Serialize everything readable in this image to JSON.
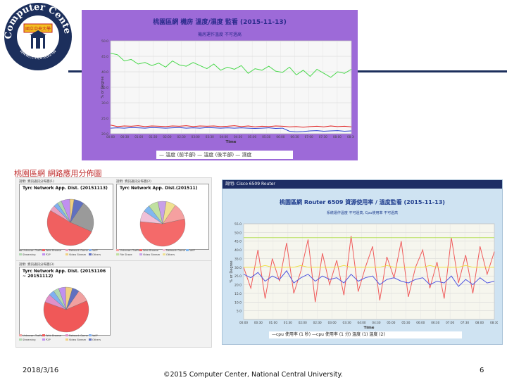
{
  "logo": {
    "arc_text": "Computer Center",
    "url_text": "www.cc.ncu.edu.tw",
    "badge_text": "國立中央大學"
  },
  "top_chart": {
    "title": "桃園區網 機房 溫度/濕度 監看 (2015-11-13)",
    "subtitle": "機房運作溫度 不可過高",
    "ylabel": "% or Degree",
    "xlabel": "Time",
    "legend": "— 溫度 (前半部)  — 溫度 (後半部)   — 濕度"
  },
  "left_panel": {
    "heading": "桃園區網 網路應用分佈圖",
    "card1": {
      "head": "說明: 資訊通訊分佈圖(1)",
      "title": "Tyrc Network App. Dist. (20151113)"
    },
    "card2": {
      "head": "說明: 資訊通訊分佈圖(2)",
      "title": "Tyrc Network App. Dist.(201511)"
    },
    "card3": {
      "head": "說明: 資訊通訊分佈圖(3)",
      "title": "Tyrc Network App. Dist. (20151106 ~ 20151112)"
    }
  },
  "router_panel": {
    "header": "說明: Cisco 6509 Router",
    "title": "桃園區網 Router 6509 資源使用率 / 溫度監看 (2015-11-13)",
    "subtitle": "系統運作溫度 不可過高, Cpu使用率 不可過高",
    "ylabel": "% or Degree",
    "xlabel": "Time",
    "legend": "—cpu 使用率 (1 秒) —cpu 使用率 (1 分)  溫度 (1)  溫度 (2)"
  },
  "footer": {
    "date": "2018/3/16",
    "copyright": "©2015 Computer Center, National Central University.",
    "page": "6"
  },
  "colors": {
    "nav_line": "#1c2f5c",
    "top_panel_bg": "#9d6ad8",
    "router_panel_bg": "#cfe3f2"
  },
  "chart_data": [
    {
      "type": "line",
      "title": "桃園區網 機房 溫度/濕度 監看 (2015-11-13)",
      "xlabel": "Time",
      "ylabel": "% or Degree",
      "ylim": [
        20,
        50
      ],
      "yticks": [
        20,
        25,
        30,
        35,
        40,
        45,
        50
      ],
      "xticks": [
        "00:00",
        "00:30",
        "01:00",
        "01:30",
        "02:00",
        "02:30",
        "03:00",
        "03:30",
        "04:00",
        "04:30",
        "05:00",
        "05:30",
        "06:00",
        "06:30",
        "07:00",
        "07:30",
        "08:00",
        "08:30"
      ],
      "grid": true,
      "legend": "bottom",
      "series": [
        {
          "name": "溫度 (前半部)",
          "color": "#e02020",
          "values": [
            22.8,
            22.3,
            22.5,
            22.4,
            22.6,
            22.3,
            22.5,
            22.4,
            22.3,
            22.5,
            22.4,
            22.6,
            22.3,
            22.5,
            22.4,
            22.5,
            22.3,
            22.4,
            22.6,
            22.3,
            22.5,
            22.2,
            22.4,
            22.3,
            22.5,
            22.4,
            22.2,
            22.3,
            22.1,
            22.3,
            22.4,
            22.2,
            22.5,
            22.3,
            22.4,
            22.2
          ]
        },
        {
          "name": "溫度 (後半部)",
          "color": "#2a3fd0",
          "values": [
            21.8,
            21.9,
            21.8,
            22.0,
            21.9,
            21.8,
            22.0,
            21.9,
            21.8,
            21.9,
            22.0,
            21.8,
            21.9,
            21.8,
            22.0,
            21.9,
            21.8,
            21.9,
            21.8,
            21.9,
            21.8,
            21.7,
            21.8,
            21.9,
            21.7,
            21.8,
            20.8,
            20.6,
            20.7,
            20.9,
            21.0,
            20.8,
            20.9,
            21.0,
            20.8,
            20.9
          ]
        },
        {
          "name": "濕度",
          "color": "#48d84a",
          "values": [
            46.0,
            45.5,
            43.5,
            44.0,
            42.5,
            43.0,
            42.0,
            42.8,
            41.5,
            43.5,
            42.2,
            41.8,
            43.0,
            42.0,
            41.0,
            42.5,
            40.5,
            41.5,
            40.8,
            42.0,
            39.5,
            41.0,
            40.5,
            41.8,
            40.2,
            39.8,
            41.5,
            39.0,
            40.5,
            38.5,
            40.8,
            39.5,
            38.2,
            40.0,
            39.5,
            40.8
          ]
        }
      ]
    },
    {
      "type": "line",
      "title": "桃園區網 Router 6509 資源使用率 / 溫度監看 (2015-11-13)",
      "xlabel": "Time",
      "ylabel": "% or Degree",
      "ylim": [
        0,
        55
      ],
      "yticks": [
        5,
        10,
        15,
        20,
        25,
        30,
        35,
        40,
        45,
        50,
        55
      ],
      "xticks": [
        "00:00",
        "00:30",
        "01:00",
        "01:30",
        "02:00",
        "02:30",
        "03:00",
        "03:30",
        "04:00",
        "04:30",
        "05:00",
        "05:30",
        "06:00",
        "06:30",
        "07:00",
        "07:30",
        "08:00",
        "08:30"
      ],
      "grid": true,
      "legend": "bottom",
      "series": [
        {
          "name": "cpu 使用率 (1 秒)",
          "color": "#f05a5a",
          "values": [
            30,
            18,
            40,
            12,
            35,
            22,
            44,
            15,
            28,
            46,
            10,
            38,
            20,
            34,
            14,
            48,
            16,
            30,
            42,
            11,
            36,
            24,
            45,
            13,
            30,
            40,
            18,
            33,
            12,
            47,
            21,
            37,
            15,
            42,
            26,
            39
          ]
        },
        {
          "name": "cpu 使用率 (1 分)",
          "color": "#4f55e0",
          "values": [
            26,
            24,
            27,
            22,
            25,
            23,
            28,
            21,
            24,
            26,
            22,
            25,
            23,
            24,
            21,
            26,
            22,
            24,
            25,
            20,
            23,
            24,
            22,
            21,
            23,
            24,
            20,
            22,
            21,
            25,
            19,
            23,
            20,
            24,
            21,
            22
          ]
        },
        {
          "name": "溫度 (1)",
          "color": "#b8e060",
          "values": [
            47,
            47,
            47,
            47,
            47,
            47,
            47,
            47,
            47,
            47,
            47,
            47,
            47,
            47,
            47,
            47,
            47,
            47,
            47,
            47,
            47,
            47,
            47,
            47,
            47,
            47,
            47,
            47,
            47,
            47,
            47,
            47,
            47,
            47,
            47,
            47
          ]
        },
        {
          "name": "溫度 (2)",
          "color": "#f0e040",
          "values": [
            30,
            30,
            30,
            31,
            30,
            30,
            30,
            30,
            31,
            30,
            30,
            30,
            30,
            30,
            31,
            30,
            30,
            30,
            30,
            30,
            31,
            30,
            30,
            30,
            30,
            30,
            31,
            30,
            30,
            30,
            30,
            31,
            30,
            30,
            30,
            30
          ]
        }
      ]
    },
    {
      "type": "pie",
      "title": "Tyrc Network App. Dist. (20151113)",
      "labels": [
        "Unknown Traffic",
        "Web Browse",
        "Network Game",
        "VoIP",
        "Streaming",
        "P2P",
        "Video Stream",
        "Others"
      ],
      "values": [
        22,
        52,
        4,
        3,
        3,
        6,
        3,
        7
      ],
      "colors": [
        "#9a9a9a",
        "#f06060",
        "#e8a0c0",
        "#7fb0f0",
        "#b0d8b0",
        "#c090f0",
        "#f0d080",
        "#6070c0"
      ]
    },
    {
      "type": "pie",
      "title": "Tyrc Network App. Dist.(201511)",
      "labels": [
        "Unknown Traffic",
        "Web Browse",
        "Network Game",
        "VoIP",
        "File Share",
        "Video Stream",
        "Others"
      ],
      "values": [
        12,
        55,
        8,
        5,
        7,
        6,
        7
      ],
      "colors": [
        "#f5a0a0",
        "#f46a6a",
        "#f0c0d8",
        "#80b8f0",
        "#c0e0a0",
        "#c8a0e8",
        "#f0e090"
      ]
    },
    {
      "type": "pie",
      "title": "Tyrc Network App. Dist. (20151106 ~ 20151112)",
      "labels": [
        "Unknown Traffic",
        "Web Browse",
        "Network Game",
        "VoIP",
        "Streaming",
        "P2P",
        "Video Stream",
        "Others"
      ],
      "values": [
        9,
        62,
        6,
        4,
        4,
        5,
        5,
        5
      ],
      "colors": [
        "#f0a0a0",
        "#f05858",
        "#e090c8",
        "#7fb0f0",
        "#b0d8b0",
        "#c090f0",
        "#f0d080",
        "#6070c0"
      ]
    }
  ]
}
